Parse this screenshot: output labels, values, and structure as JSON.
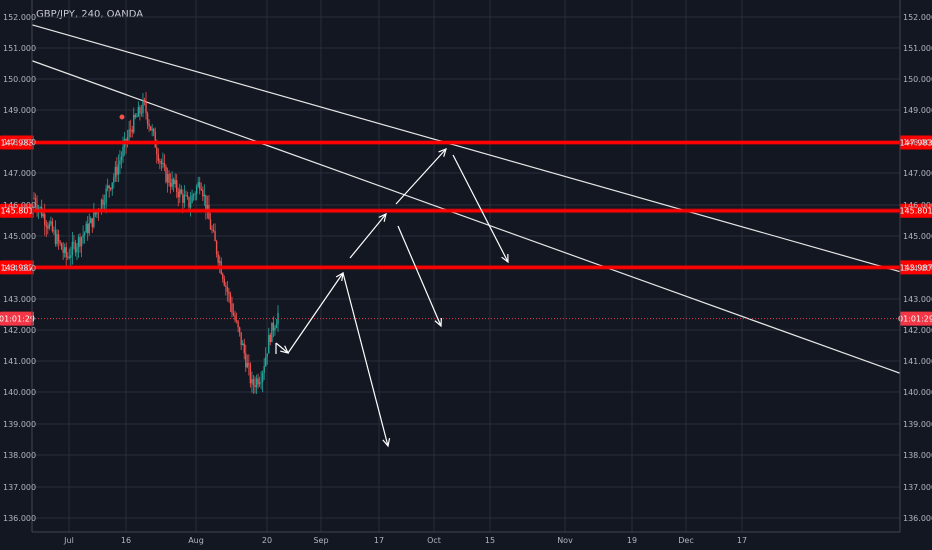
{
  "chart_data": {
    "type": "candlestick",
    "title": "GBP/JPY, 240, OANDA",
    "y_ticks": [
      "136.000",
      "137.000",
      "138.000",
      "139.000",
      "140.000",
      "141.000",
      "142.000",
      "143.000",
      "145.000",
      "147.000",
      "148.000",
      "149.000",
      "150.000",
      "151.000",
      "152.000"
    ],
    "partial_y_ticks": [
      "144.000",
      "146.000"
    ],
    "ylim": [
      135.8,
      152.3
    ],
    "x_ticks": [
      "Jul",
      "16",
      "Aug",
      "20",
      "Sep",
      "17",
      "Oct",
      "15",
      "Nov",
      "19",
      "Dec",
      "17"
    ],
    "horizontal_levels": [
      {
        "label": "147.983",
        "value": 147.983,
        "color": "#ff0000"
      },
      {
        "label": "145.801",
        "value": 145.801,
        "color": "#ff0000"
      },
      {
        "label": "143.987",
        "value": 143.987,
        "color": "#ff0000"
      }
    ],
    "countdown": {
      "label": "01:01:29",
      "value": 142.35,
      "color": "#f23645"
    },
    "trendlines": [
      {
        "from": [
          0,
          151.75
        ],
        "to": [
          1,
          143.85
        ]
      },
      {
        "from": [
          0,
          150.6
        ],
        "to": [
          1,
          140.6
        ]
      }
    ],
    "price_path": [
      [
        0,
        146.2
      ],
      [
        0.04,
        144.3
      ],
      [
        0.07,
        145.4
      ],
      [
        0.1,
        147.0
      ],
      [
        0.12,
        148.5
      ],
      [
        0.135,
        149.2
      ],
      [
        0.16,
        147.0
      ],
      [
        0.19,
        146.0
      ],
      [
        0.205,
        146.8
      ],
      [
        0.215,
        145.5
      ],
      [
        0.232,
        143.8
      ],
      [
        0.245,
        142.5
      ],
      [
        0.257,
        141.4
      ],
      [
        0.268,
        140.2
      ],
      [
        0.28,
        140.6
      ],
      [
        0.29,
        141.8
      ],
      [
        0.3,
        142.5
      ]
    ],
    "colors": {
      "up": "#26a69a",
      "down": "#ef5350",
      "background": "#131722",
      "grid": "#2a2e39",
      "trendline": "#e6e6e6",
      "annotation": "#ffffff"
    }
  }
}
